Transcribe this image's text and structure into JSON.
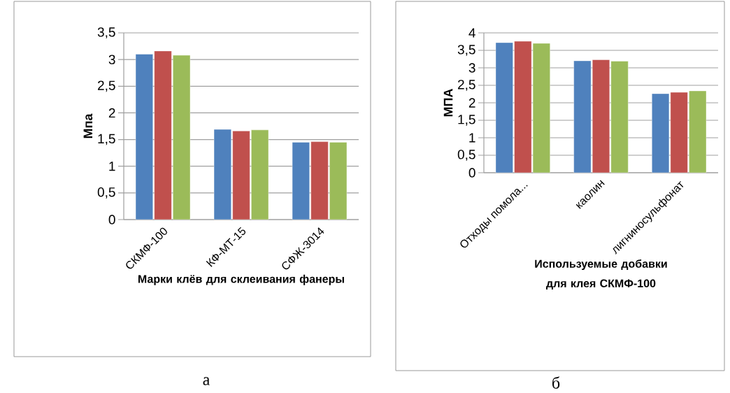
{
  "chart_data": [
    {
      "type": "bar",
      "xlabel": "Марки клёв для склеивания фанеры",
      "ylabel": "Мпа",
      "categories": [
        "СКМФ-100",
        "КФ-МТ-15",
        "СФЖ-3014"
      ],
      "series": [
        {
          "color": "#4f81bd",
          "values": [
            3.1,
            1.69,
            1.45
          ]
        },
        {
          "color": "#c0504d",
          "values": [
            3.16,
            1.66,
            1.46
          ]
        },
        {
          "color": "#9bbb59",
          "values": [
            3.08,
            1.68,
            1.45
          ]
        }
      ],
      "ylim": [
        0,
        3.5
      ],
      "yticks": [
        0,
        {
          "value": 0.5,
          "label": "0,5"
        },
        1,
        {
          "value": 1.5,
          "label": "1,5"
        },
        2,
        {
          "value": 2.5,
          "label": "2,5"
        },
        3,
        {
          "value": 3.5,
          "label": "3,5"
        }
      ],
      "grid": "y",
      "annotations": [
        "а"
      ]
    },
    {
      "type": "bar",
      "xlabel": "Используемые добавки для клея СКМФ-100",
      "ylabel": "МПА",
      "categories": [
        "Отходы помола...",
        "каолин",
        "лигниносульфонат"
      ],
      "series": [
        {
          "color": "#4f81bd",
          "values": [
            3.72,
            3.2,
            2.26
          ]
        },
        {
          "color": "#c0504d",
          "values": [
            3.76,
            3.23,
            2.3
          ]
        },
        {
          "color": "#9bbb59",
          "values": [
            3.7,
            3.19,
            2.34
          ]
        }
      ],
      "ylim": [
        0,
        4
      ],
      "yticks": [
        0,
        {
          "value": 0.5,
          "label": "0,5"
        },
        1,
        {
          "value": 1.5,
          "label": "1,5"
        },
        2,
        {
          "value": 2.5,
          "label": "2,5"
        },
        3,
        {
          "value": 3.5,
          "label": "3,5"
        },
        4
      ],
      "grid": "y",
      "annotations": [
        "б"
      ]
    }
  ]
}
